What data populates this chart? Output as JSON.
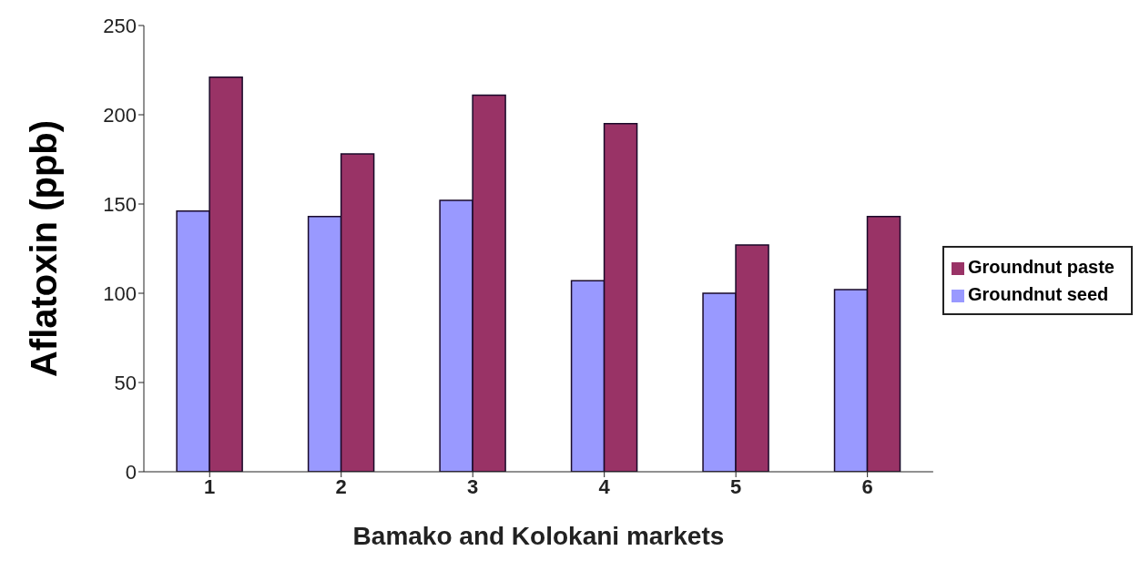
{
  "chart_data": {
    "type": "bar",
    "xlabel": "Bamako and Kolokani markets",
    "ylabel": "Aflatoxin (ppb)",
    "categories": [
      "1",
      "2",
      "3",
      "4",
      "5",
      "6"
    ],
    "series": [
      {
        "name": "Groundnut seed",
        "color": "#9999ff",
        "values": [
          146,
          143,
          152,
          107,
          100,
          102
        ]
      },
      {
        "name": "Groundnut paste",
        "color": "#993366",
        "values": [
          221,
          178,
          211,
          195,
          127,
          143
        ]
      }
    ],
    "ylim": [
      0,
      250
    ],
    "yticks": [
      0,
      50,
      100,
      150,
      200,
      250
    ],
    "grid": false,
    "legend": "right"
  }
}
